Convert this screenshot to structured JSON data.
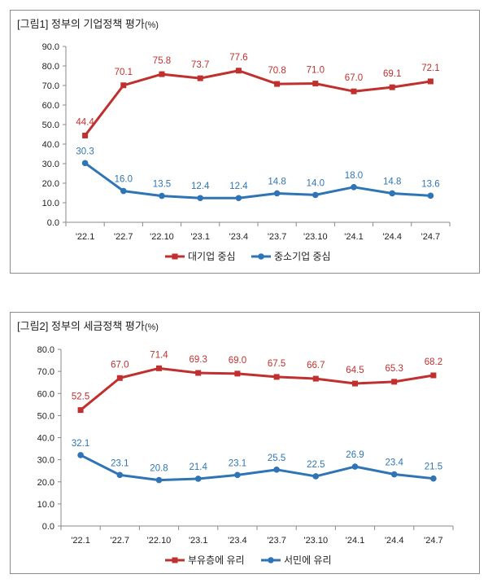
{
  "charts": [
    {
      "title": "[그림1]  정부의 기업정책 평가",
      "unit": "(%)",
      "chart_data": {
        "type": "line",
        "categories": [
          "'22.1",
          "'22.7",
          "'22.10",
          "'23.1",
          "'23.4",
          "'23.7",
          "'23.10",
          "'24.1",
          "'24.4",
          "'24.7"
        ],
        "ylim": [
          0,
          90
        ],
        "yticks": [
          "0.0",
          "10.0",
          "20.0",
          "30.0",
          "40.0",
          "50.0",
          "60.0",
          "70.0",
          "80.0",
          "90.0"
        ],
        "series": [
          {
            "name": "대기업 중심",
            "color": "#c0302e",
            "marker": "square",
            "values": [
              44.4,
              70.1,
              75.8,
              73.7,
              77.6,
              70.8,
              71.0,
              67.0,
              69.1,
              72.1
            ],
            "labels": [
              "44.4",
              "70.1",
              "75.8",
              "73.7",
              "77.6",
              "70.8",
              "71.0",
              "67.0",
              "69.1",
              "72.1"
            ]
          },
          {
            "name": "중소기업 중심",
            "color": "#2f75b5",
            "marker": "circle",
            "values": [
              30.3,
              16.0,
              13.5,
              12.4,
              12.4,
              14.8,
              14.0,
              18.0,
              14.8,
              13.6
            ],
            "labels": [
              "30.3",
              "16.0",
              "13.5",
              "12.4",
              "12.4",
              "14.8",
              "14.0",
              "18.0",
              "14.8",
              "13.6"
            ]
          }
        ]
      }
    },
    {
      "title": "[그림2]  정부의 세금정책 평가",
      "unit": "(%)",
      "chart_data": {
        "type": "line",
        "categories": [
          "'22.1",
          "'22.7",
          "'22.10",
          "'23.1",
          "'23.4",
          "'23.7",
          "'23.10",
          "'24.1",
          "'24.4",
          "'24.7"
        ],
        "ylim": [
          0,
          80
        ],
        "yticks": [
          "0.0",
          "10.0",
          "20.0",
          "30.0",
          "40.0",
          "50.0",
          "60.0",
          "70.0",
          "80.0"
        ],
        "series": [
          {
            "name": "부유층에 유리",
            "color": "#c0302e",
            "marker": "square",
            "values": [
              52.5,
              67.0,
              71.4,
              69.3,
              69.0,
              67.5,
              66.7,
              64.5,
              65.3,
              68.2
            ],
            "labels": [
              "52.5",
              "67.0",
              "71.4",
              "69.3",
              "69.0",
              "67.5",
              "66.7",
              "64.5",
              "65.3",
              "68.2"
            ]
          },
          {
            "name": "서민에 유리",
            "color": "#2f75b5",
            "marker": "circle",
            "values": [
              32.1,
              23.1,
              20.8,
              21.4,
              23.1,
              25.5,
              22.5,
              26.9,
              23.4,
              21.5
            ],
            "labels": [
              "32.1",
              "23.1",
              "20.8",
              "21.4",
              "23.1",
              "25.5",
              "22.5",
              "26.9",
              "23.4",
              "21.5"
            ]
          }
        ]
      }
    }
  ]
}
